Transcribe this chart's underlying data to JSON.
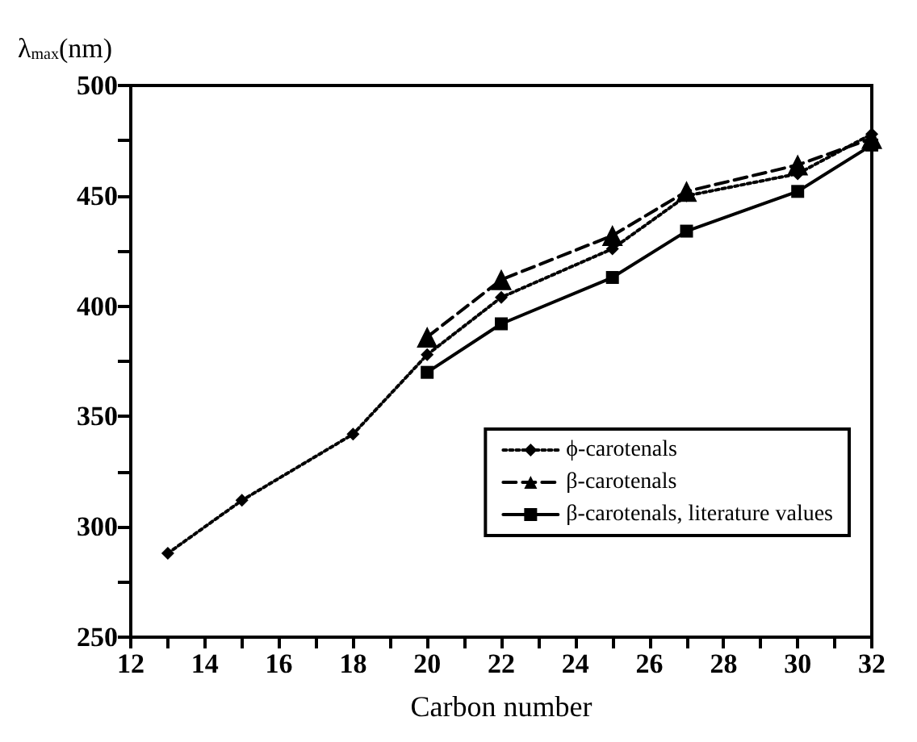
{
  "chart_data": {
    "type": "line",
    "xlabel": "Carbon number",
    "ylabel": "λ$_{max}$(nm)",
    "xlim": [
      12,
      32
    ],
    "xticks": [
      12,
      {
        "value": 13,
        "label": null
      },
      14,
      {
        "value": 15,
        "label": null
      },
      16,
      {
        "value": 17,
        "label": null
      },
      18,
      {
        "value": 19,
        "label": null
      },
      20,
      {
        "value": 21,
        "label": null
      },
      22,
      {
        "value": 23,
        "label": null
      },
      24,
      {
        "value": 25,
        "label": null
      },
      26,
      {
        "value": 27,
        "label": null
      },
      28,
      {
        "value": 29,
        "label": null
      },
      30,
      {
        "value": 31,
        "label": null
      },
      32
    ],
    "ylim": [
      250,
      500
    ],
    "yticks": [
      250,
      {
        "value": 275,
        "label": null
      },
      300,
      {
        "value": 325,
        "label": null
      },
      350,
      {
        "value": 375,
        "label": null
      },
      400,
      {
        "value": 425,
        "label": null
      },
      450,
      {
        "value": 475,
        "label": null
      },
      500
    ],
    "grid": false,
    "legend": "bottom right",
    "series": [
      {
        "name": "ϕ-carotenals",
        "color": "#000000",
        "marker": "diamond",
        "line_style": "dotted",
        "x": [
          13,
          15,
          18,
          20,
          22,
          25,
          27,
          30,
          32
        ],
        "values": [
          288,
          312,
          342,
          378,
          404,
          426,
          450,
          460,
          478
        ]
      },
      {
        "name": "β-carotenals",
        "color": "#000000",
        "marker": "triangle",
        "line_style": "dashed",
        "x": [
          20,
          22,
          25,
          27,
          30,
          32
        ],
        "values": [
          386,
          412,
          432,
          452,
          464,
          476
        ]
      },
      {
        "name": "β-carotenals, literature values",
        "color": "#000000",
        "marker": "square",
        "line_style": "solid",
        "x": [
          20,
          22,
          25,
          27,
          30,
          32
        ],
        "values": [
          370,
          392,
          413,
          434,
          452,
          473
        ]
      }
    ]
  }
}
